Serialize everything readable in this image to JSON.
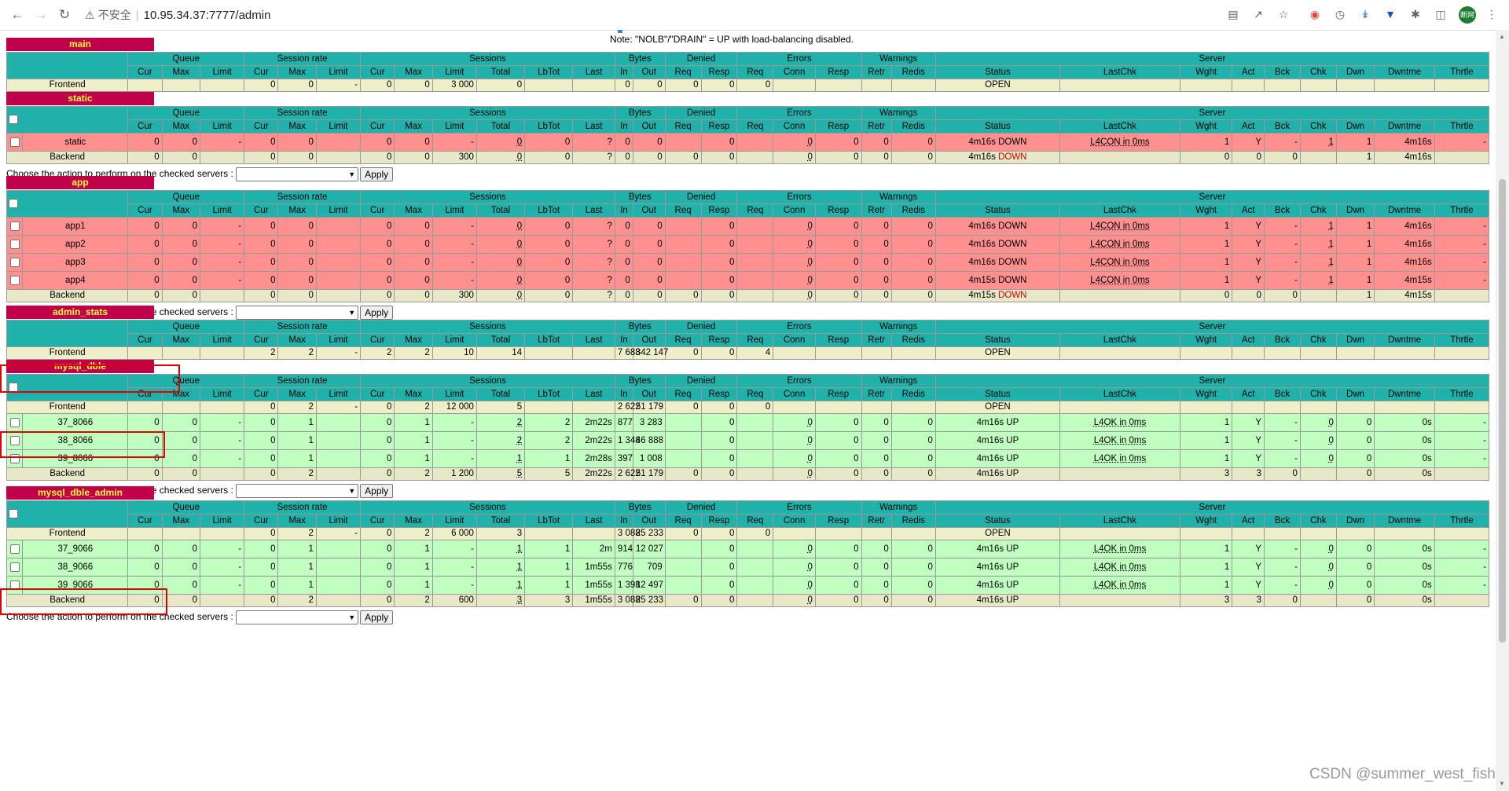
{
  "browser": {
    "security_label": "不安全",
    "url": "10.95.34.37:7777/admin",
    "profile_label": "断网"
  },
  "note": "Note: \"NOLB\"/\"DRAIN\" = UP with load-balancing disabled.",
  "action_label": "Choose the action to perform on the checked servers :",
  "apply_label": "Apply",
  "header_groups": [
    "Queue",
    "Session rate",
    "Sessions",
    "Bytes",
    "Denied",
    "Errors",
    "Warnings",
    "Server"
  ],
  "columns": [
    "Cur",
    "Max",
    "Limit",
    "Cur",
    "Max",
    "Limit",
    "Cur",
    "Max",
    "Limit",
    "Total",
    "LbTot",
    "Last",
    "In",
    "Out",
    "Req",
    "Resp",
    "Req",
    "Conn",
    "Resp",
    "Retr",
    "Redis",
    "Status",
    "LastChk",
    "Wght",
    "Act",
    "Bck",
    "Chk",
    "Dwn",
    "Dwntme",
    "Thrtle"
  ],
  "proxies": [
    {
      "name": "main",
      "checkbox": false,
      "rows": [
        {
          "kind": "frontend",
          "cells": [
            "Frontend",
            "",
            "",
            "",
            "0",
            "0",
            "-",
            "0",
            "0",
            "3 000",
            "0",
            "",
            "",
            "0",
            "0",
            "0",
            "0",
            "0",
            "",
            "",
            "",
            "",
            "OPEN",
            "",
            "",
            "",
            "",
            "",
            "",
            "",
            ""
          ]
        }
      ]
    },
    {
      "name": "static",
      "checkbox": true,
      "rows": [
        {
          "kind": "down",
          "cells": [
            "static",
            "0",
            "0",
            "-",
            "0",
            "0",
            "",
            "0",
            "0",
            "-",
            "0",
            "0",
            "?",
            "0",
            "0",
            "",
            "0",
            "",
            "0",
            "0",
            "0",
            "0",
            "4m16s DOWN",
            "L4CON in 0ms",
            "1",
            "Y",
            "-",
            "1",
            "1",
            "4m16s",
            "-"
          ]
        },
        {
          "kind": "backend",
          "cells": [
            "Backend",
            "0",
            "0",
            "",
            "0",
            "0",
            "",
            "0",
            "0",
            "300",
            "0",
            "0",
            "?",
            "0",
            "0",
            "0",
            "0",
            "",
            "0",
            "0",
            "0",
            "0",
            "4m16s DOWN",
            "",
            "0",
            "0",
            "0",
            "",
            "1",
            "4m16s",
            ""
          ]
        }
      ]
    },
    {
      "name": "app",
      "checkbox": true,
      "rows": [
        {
          "kind": "down",
          "cells": [
            "app1",
            "0",
            "0",
            "-",
            "0",
            "0",
            "",
            "0",
            "0",
            "-",
            "0",
            "0",
            "?",
            "0",
            "0",
            "",
            "0",
            "",
            "0",
            "0",
            "0",
            "0",
            "4m16s DOWN",
            "L4CON in 0ms",
            "1",
            "Y",
            "-",
            "1",
            "1",
            "4m16s",
            "-"
          ]
        },
        {
          "kind": "down",
          "cells": [
            "app2",
            "0",
            "0",
            "-",
            "0",
            "0",
            "",
            "0",
            "0",
            "-",
            "0",
            "0",
            "?",
            "0",
            "0",
            "",
            "0",
            "",
            "0",
            "0",
            "0",
            "0",
            "4m16s DOWN",
            "L4CON in 0ms",
            "1",
            "Y",
            "-",
            "1",
            "1",
            "4m16s",
            "-"
          ]
        },
        {
          "kind": "down",
          "cells": [
            "app3",
            "0",
            "0",
            "-",
            "0",
            "0",
            "",
            "0",
            "0",
            "-",
            "0",
            "0",
            "?",
            "0",
            "0",
            "",
            "0",
            "",
            "0",
            "0",
            "0",
            "0",
            "4m16s DOWN",
            "L4CON in 0ms",
            "1",
            "Y",
            "-",
            "1",
            "1",
            "4m16s",
            "-"
          ]
        },
        {
          "kind": "down",
          "cells": [
            "app4",
            "0",
            "0",
            "-",
            "0",
            "0",
            "",
            "0",
            "0",
            "-",
            "0",
            "0",
            "?",
            "0",
            "0",
            "",
            "0",
            "",
            "0",
            "0",
            "0",
            "0",
            "4m15s DOWN",
            "L4CON in 0ms",
            "1",
            "Y",
            "-",
            "1",
            "1",
            "4m15s",
            "-"
          ]
        },
        {
          "kind": "backend",
          "cells": [
            "Backend",
            "0",
            "0",
            "",
            "0",
            "0",
            "",
            "0",
            "0",
            "300",
            "0",
            "0",
            "?",
            "0",
            "0",
            "0",
            "0",
            "",
            "0",
            "0",
            "0",
            "0",
            "4m15s DOWN",
            "",
            "0",
            "0",
            "0",
            "",
            "1",
            "4m15s",
            ""
          ]
        }
      ]
    },
    {
      "name": "admin_stats",
      "checkbox": false,
      "rows": [
        {
          "kind": "frontend",
          "cells": [
            "Frontend",
            "",
            "",
            "",
            "2",
            "2",
            "-",
            "2",
            "2",
            "10",
            "14",
            "",
            "",
            "7 688",
            "342 147",
            "0",
            "0",
            "4",
            "",
            "",
            "",
            "",
            "OPEN",
            "",
            "",
            "",
            "",
            "",
            "",
            "",
            ""
          ]
        }
      ]
    },
    {
      "name": "mysql_dble",
      "checkbox": true,
      "rows": [
        {
          "kind": "frontend",
          "cells": [
            "Frontend",
            "",
            "",
            "",
            "0",
            "2",
            "-",
            "0",
            "2",
            "12 000",
            "5",
            "",
            "",
            "2 622",
            "51 179",
            "0",
            "0",
            "0",
            "",
            "",
            "",
            "",
            "OPEN",
            "",
            "",
            "",
            "",
            "",
            "",
            "",
            ""
          ]
        },
        {
          "kind": "up",
          "cells": [
            "37_8066",
            "0",
            "0",
            "-",
            "0",
            "1",
            "",
            "0",
            "1",
            "-",
            "2",
            "2",
            "2m22s",
            "877",
            "3 283",
            "",
            "0",
            "",
            "0",
            "0",
            "0",
            "0",
            "4m16s UP",
            "L4OK in 0ms",
            "1",
            "Y",
            "-",
            "0",
            "0",
            "0s",
            "-"
          ]
        },
        {
          "kind": "up",
          "cells": [
            "38_8066",
            "0",
            "0",
            "-",
            "0",
            "1",
            "",
            "0",
            "1",
            "-",
            "2",
            "2",
            "2m22s",
            "1 348",
            "46 888",
            "",
            "0",
            "",
            "0",
            "0",
            "0",
            "0",
            "4m16s UP",
            "L4OK in 0ms",
            "1",
            "Y",
            "-",
            "0",
            "0",
            "0s",
            "-"
          ]
        },
        {
          "kind": "up",
          "cells": [
            "39_8066",
            "0",
            "0",
            "-",
            "0",
            "1",
            "",
            "0",
            "1",
            "-",
            "1",
            "1",
            "2m28s",
            "397",
            "1 008",
            "",
            "0",
            "",
            "0",
            "0",
            "0",
            "0",
            "4m16s UP",
            "L4OK in 0ms",
            "1",
            "Y",
            "-",
            "0",
            "0",
            "0s",
            "-"
          ]
        },
        {
          "kind": "backend",
          "cells": [
            "Backend",
            "0",
            "0",
            "",
            "0",
            "2",
            "",
            "0",
            "2",
            "1 200",
            "5",
            "5",
            "2m22s",
            "2 622",
            "51 179",
            "0",
            "0",
            "",
            "0",
            "0",
            "0",
            "0",
            "4m16s UP",
            "",
            "3",
            "3",
            "0",
            "",
            "0",
            "0s",
            ""
          ]
        }
      ]
    },
    {
      "name": "mysql_dble_admin",
      "checkbox": true,
      "rows": [
        {
          "kind": "frontend",
          "cells": [
            "Frontend",
            "",
            "",
            "",
            "0",
            "2",
            "-",
            "0",
            "2",
            "6 000",
            "3",
            "",
            "",
            "3 088",
            "25 233",
            "0",
            "0",
            "0",
            "",
            "",
            "",
            "",
            "OPEN",
            "",
            "",
            "",
            "",
            "",
            "",
            "",
            ""
          ]
        },
        {
          "kind": "up",
          "cells": [
            "37_9066",
            "0",
            "0",
            "-",
            "0",
            "1",
            "",
            "0",
            "1",
            "-",
            "1",
            "1",
            "2m",
            "914",
            "12 027",
            "",
            "0",
            "",
            "0",
            "0",
            "0",
            "0",
            "4m16s UP",
            "L4OK in 0ms",
            "1",
            "Y",
            "-",
            "0",
            "0",
            "0s",
            "-"
          ]
        },
        {
          "kind": "up",
          "cells": [
            "38_9066",
            "0",
            "0",
            "-",
            "0",
            "1",
            "",
            "0",
            "1",
            "-",
            "1",
            "1",
            "1m55s",
            "776",
            "709",
            "",
            "0",
            "",
            "0",
            "0",
            "0",
            "0",
            "4m16s UP",
            "L4OK in 0ms",
            "1",
            "Y",
            "-",
            "0",
            "0",
            "0s",
            "-"
          ]
        },
        {
          "kind": "up",
          "cells": [
            "39_9066",
            "0",
            "0",
            "-",
            "0",
            "1",
            "",
            "0",
            "1",
            "-",
            "1",
            "1",
            "1m55s",
            "1 398",
            "12 497",
            "",
            "0",
            "",
            "0",
            "0",
            "0",
            "0",
            "4m16s UP",
            "L4OK in 0ms",
            "1",
            "Y",
            "-",
            "0",
            "0",
            "0s",
            "-"
          ]
        },
        {
          "kind": "backend",
          "cells": [
            "Backend",
            "0",
            "0",
            "",
            "0",
            "2",
            "",
            "0",
            "2",
            "600",
            "3",
            "3",
            "1m55s",
            "3 088",
            "25 233",
            "0",
            "0",
            "",
            "0",
            "0",
            "0",
            "0",
            "4m16s UP",
            "",
            "3",
            "3",
            "0",
            "",
            "0",
            "0s",
            ""
          ]
        }
      ]
    }
  ],
  "watermark": "CSDN @summer_west_fish",
  "colors": {
    "title_bg": "#c00048",
    "title_fg": "#ffff40",
    "header_bg": "#20b2aa",
    "down_bg": "#ff9090",
    "up_bg": "#c0ffc0",
    "frontend_bg": "#eeeec8",
    "highlight": "#e00000"
  }
}
